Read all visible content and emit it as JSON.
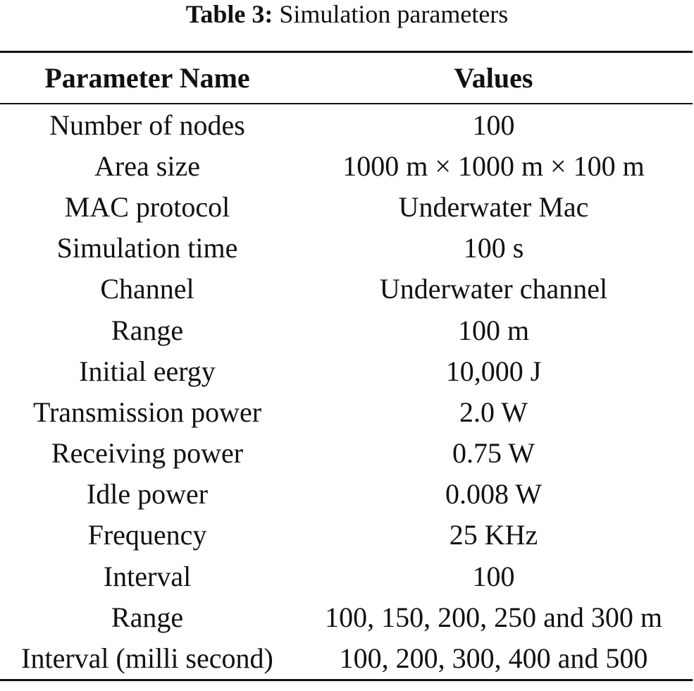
{
  "caption": {
    "label": "Table 3:",
    "text": "Simulation parameters"
  },
  "table": {
    "headers": [
      "Parameter Name",
      "Values"
    ],
    "rows": [
      [
        "Number of nodes",
        "100"
      ],
      [
        "Area size",
        "1000 m × 1000 m × 100 m"
      ],
      [
        "MAC protocol",
        "Underwater Mac"
      ],
      [
        "Simulation time",
        "100 s"
      ],
      [
        "Channel",
        "Underwater channel"
      ],
      [
        "Range",
        "100 m"
      ],
      [
        "Initial eergy",
        "10,000 J"
      ],
      [
        "Transmission power",
        "2.0 W"
      ],
      [
        "Receiving power",
        "0.75 W"
      ],
      [
        "Idle power",
        "0.008 W"
      ],
      [
        "Frequency",
        "25 KHz"
      ],
      [
        "Interval",
        "100"
      ],
      [
        "Range",
        "100, 150, 200, 250 and 300 m"
      ],
      [
        "Interval (milli second)",
        "100, 200, 300, 400 and 500"
      ]
    ]
  }
}
